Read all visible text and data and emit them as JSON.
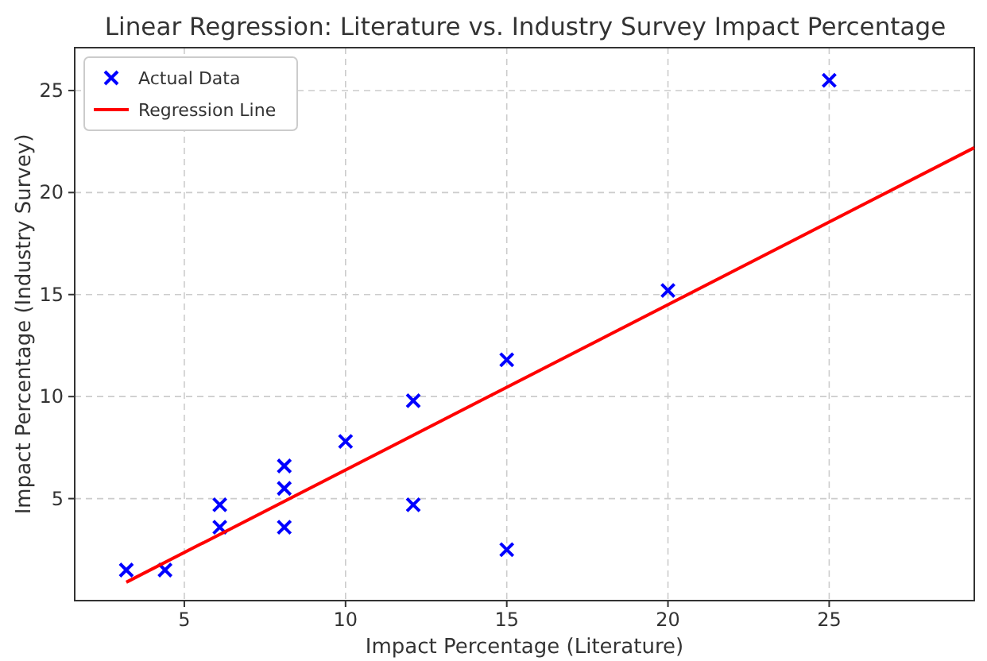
{
  "chart_data": {
    "type": "scatter",
    "title": "Linear Regression: Literature vs. Industry Survey Impact Percentage",
    "xlabel": "Impact Percentage (Literature)",
    "ylabel": "Impact Percentage (Industry Survey)",
    "xlim": [
      1.6,
      29.5
    ],
    "ylim": [
      0,
      27.1
    ],
    "xticks": [
      5,
      10,
      15,
      20,
      25
    ],
    "yticks": [
      5,
      10,
      15,
      20,
      25
    ],
    "grid": true,
    "legend": "top left",
    "series": [
      {
        "name": "Actual Data",
        "type": "scatter",
        "color": "#0000ff",
        "marker": "cross",
        "x": [
          3.2,
          4.4,
          6.1,
          6.1,
          8.1,
          8.1,
          8.1,
          10,
          12.1,
          12.1,
          15,
          15,
          20,
          25
        ],
        "values": [
          1.5,
          1.5,
          4.7,
          3.6,
          6.6,
          5.5,
          3.6,
          7.8,
          9.8,
          4.7,
          11.8,
          2.5,
          15.2,
          25.5
        ]
      },
      {
        "name": "Regression Line",
        "type": "line",
        "color": "#ff0000",
        "marker": "none",
        "line_style": "solid",
        "x": [
          3.2,
          29.5
        ],
        "values": [
          0.9,
          22.2
        ]
      }
    ]
  }
}
